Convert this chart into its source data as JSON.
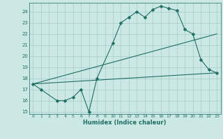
{
  "xlabel": "Humidex (Indice chaleur)",
  "bg_color": "#cce8e5",
  "grid_color": "#aacfcc",
  "line_color": "#1e6e62",
  "xlim": [
    -0.5,
    23.5
  ],
  "ylim": [
    14.8,
    24.8
  ],
  "yticks": [
    15,
    16,
    17,
    18,
    19,
    20,
    21,
    22,
    23,
    24
  ],
  "xticks": [
    0,
    1,
    2,
    3,
    4,
    5,
    6,
    7,
    8,
    9,
    10,
    11,
    12,
    13,
    14,
    15,
    16,
    17,
    18,
    19,
    20,
    21,
    22,
    23
  ],
  "line1_x": [
    0,
    1,
    3,
    4,
    5,
    6,
    7,
    8,
    10,
    11,
    12,
    13,
    14,
    15,
    16,
    17,
    18,
    19,
    20,
    21,
    22,
    23
  ],
  "line1_y": [
    17.5,
    17.0,
    16.0,
    16.0,
    16.3,
    17.0,
    15.0,
    18.0,
    21.2,
    23.0,
    23.5,
    24.0,
    23.5,
    24.2,
    24.5,
    24.3,
    24.1,
    22.4,
    22.0,
    19.7,
    18.8,
    18.5
  ],
  "line2_x": [
    0,
    23
  ],
  "line2_y": [
    17.5,
    22.0
  ],
  "line3_x": [
    0,
    23
  ],
  "line3_y": [
    17.5,
    18.5
  ],
  "markersize": 2.5
}
